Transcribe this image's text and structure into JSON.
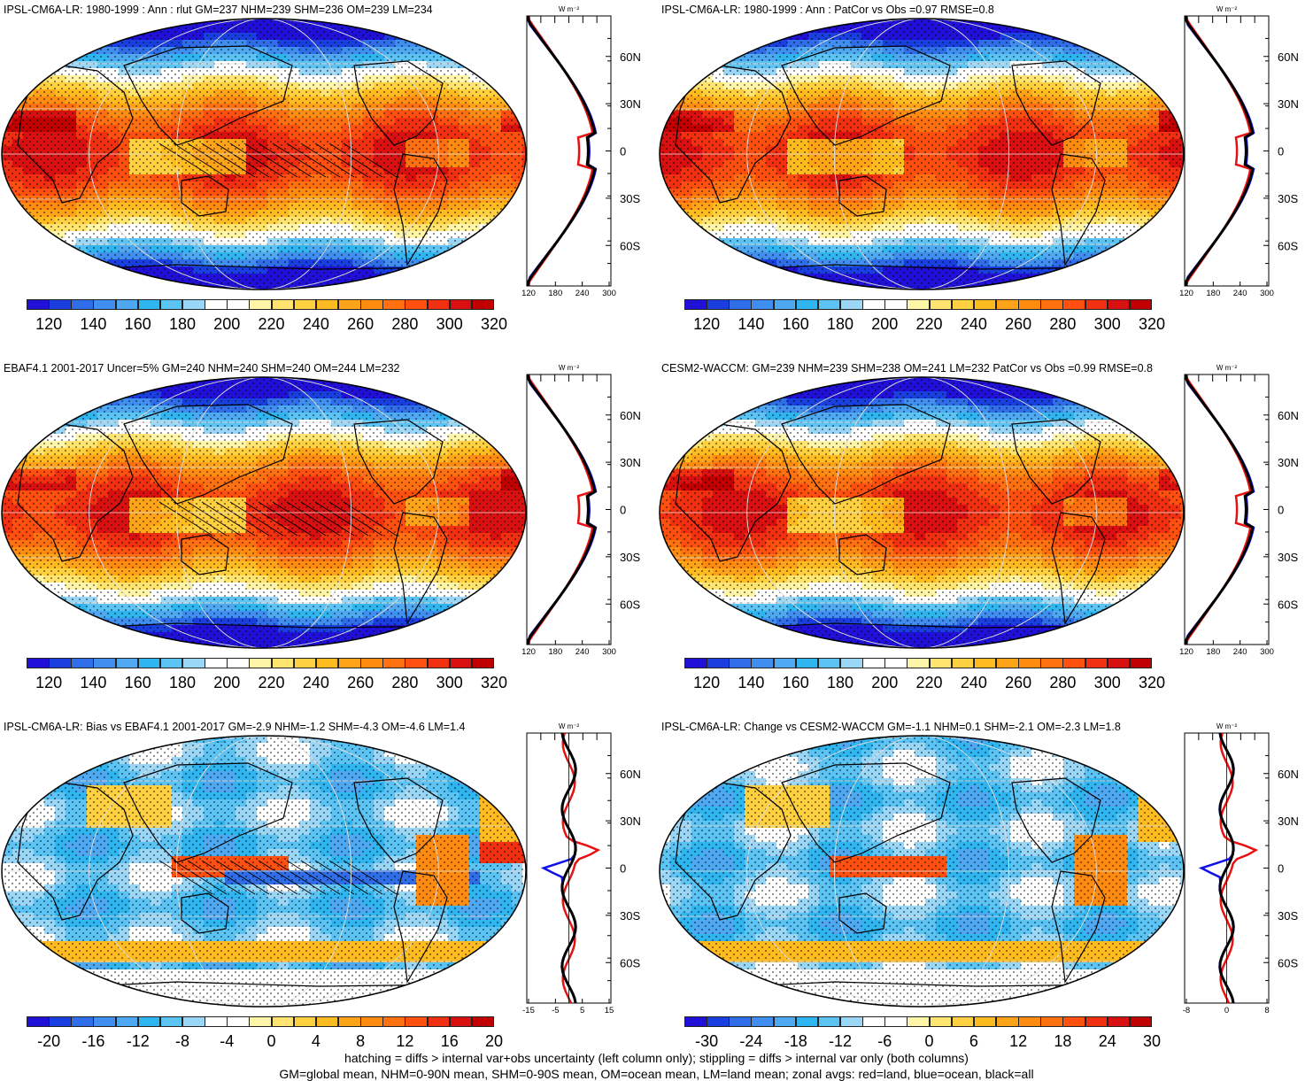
{
  "panels": [
    {
      "id": "p1",
      "title": "IPSL-CM6A-LR: 1980-1999 : Ann : rlut GM=237 NHM=239 SHM=236 OM=239 LM=234",
      "colorbar": "abs",
      "zonal_ticks": [
        "120",
        "180",
        "240",
        "300"
      ],
      "hatch": true,
      "kind": "abs"
    },
    {
      "id": "p2",
      "title": "IPSL-CM6A-LR: 1980-1999 : Ann : PatCor vs Obs =0.97 RMSE=0.8",
      "colorbar": "abs",
      "zonal_ticks": [
        "120",
        "180",
        "240",
        "300"
      ],
      "hatch": false,
      "kind": "abs"
    },
    {
      "id": "p3",
      "title": "EBAF4.1 2001-2017 Uncer=5% GM=240 NHM=240 SHM=240 OM=244 LM=232",
      "colorbar": "abs",
      "zonal_ticks": [
        "120",
        "180",
        "240",
        "300"
      ],
      "hatch": true,
      "kind": "abs"
    },
    {
      "id": "p4",
      "title": "CESM2-WACCM: GM=239 NHM=239 SHM=238 OM=241 LM=232 PatCor vs Obs =0.99 RMSE=0.8",
      "colorbar": "abs",
      "zonal_ticks": [
        "120",
        "180",
        "240",
        "300"
      ],
      "hatch": false,
      "kind": "abs"
    },
    {
      "id": "p5",
      "title": "IPSL-CM6A-LR: Bias vs EBAF4.1 2001-2017 GM=-2.9 NHM=-1.2 SHM=-4.3 OM=-4.6 LM=1.4",
      "colorbar": "bias",
      "zonal_ticks": [
        "-15",
        "-5",
        "5",
        "15"
      ],
      "hatch": true,
      "kind": "bias"
    },
    {
      "id": "p6",
      "title": "IPSL-CM6A-LR: Change vs CESM2-WACCM GM=-1.1 NHM=0.1 SHM=-2.1 OM=-2.3 LM=1.8",
      "colorbar": "change",
      "zonal_ticks": [
        "-8",
        "0",
        "8"
      ],
      "hatch": false,
      "kind": "change"
    }
  ],
  "units_label": "W m⁻²",
  "lat_labels": [
    "60N",
    "30N",
    "0",
    "30S",
    "60S"
  ],
  "colorbars": {
    "abs": {
      "labels": [
        "120",
        "140",
        "160",
        "180",
        "200",
        "220",
        "240",
        "260",
        "280",
        "300",
        "320"
      ]
    },
    "bias": {
      "labels": [
        "-20",
        "-16",
        "-12",
        "-8",
        "-4",
        "0",
        "4",
        "8",
        "12",
        "16",
        "20"
      ]
    },
    "change": {
      "labels": [
        "-30",
        "-24",
        "-18",
        "-12",
        "-6",
        "0",
        "6",
        "12",
        "18",
        "24",
        "30"
      ]
    }
  },
  "palette": [
    "#2010d8",
    "#1a3fe0",
    "#2f6ee8",
    "#3f8ef0",
    "#4ea8f2",
    "#2fb6f0",
    "#5cc4f4",
    "#9ad6f6",
    "#ffffff",
    "#ffffff",
    "#fff5a8",
    "#ffe470",
    "#ffd040",
    "#ffbc20",
    "#ffa418",
    "#ff8c10",
    "#ff7010",
    "#ff5010",
    "#f03010",
    "#d81010",
    "#c00000"
  ],
  "zonal_legend": {
    "land": "#e81010",
    "ocean": "#1010e8",
    "all": "#000000"
  },
  "footer_line1": "hatching = diffs > internal var+obs uncertainty (left column only); stippling = diffs > internal var only (both columns)",
  "footer_line2": "GM=global mean, NHM=0-90N mean, SHM=0-90S mean, OM=ocean mean, LM=land mean; zonal avgs: red=land, blue=ocean, black=all"
}
